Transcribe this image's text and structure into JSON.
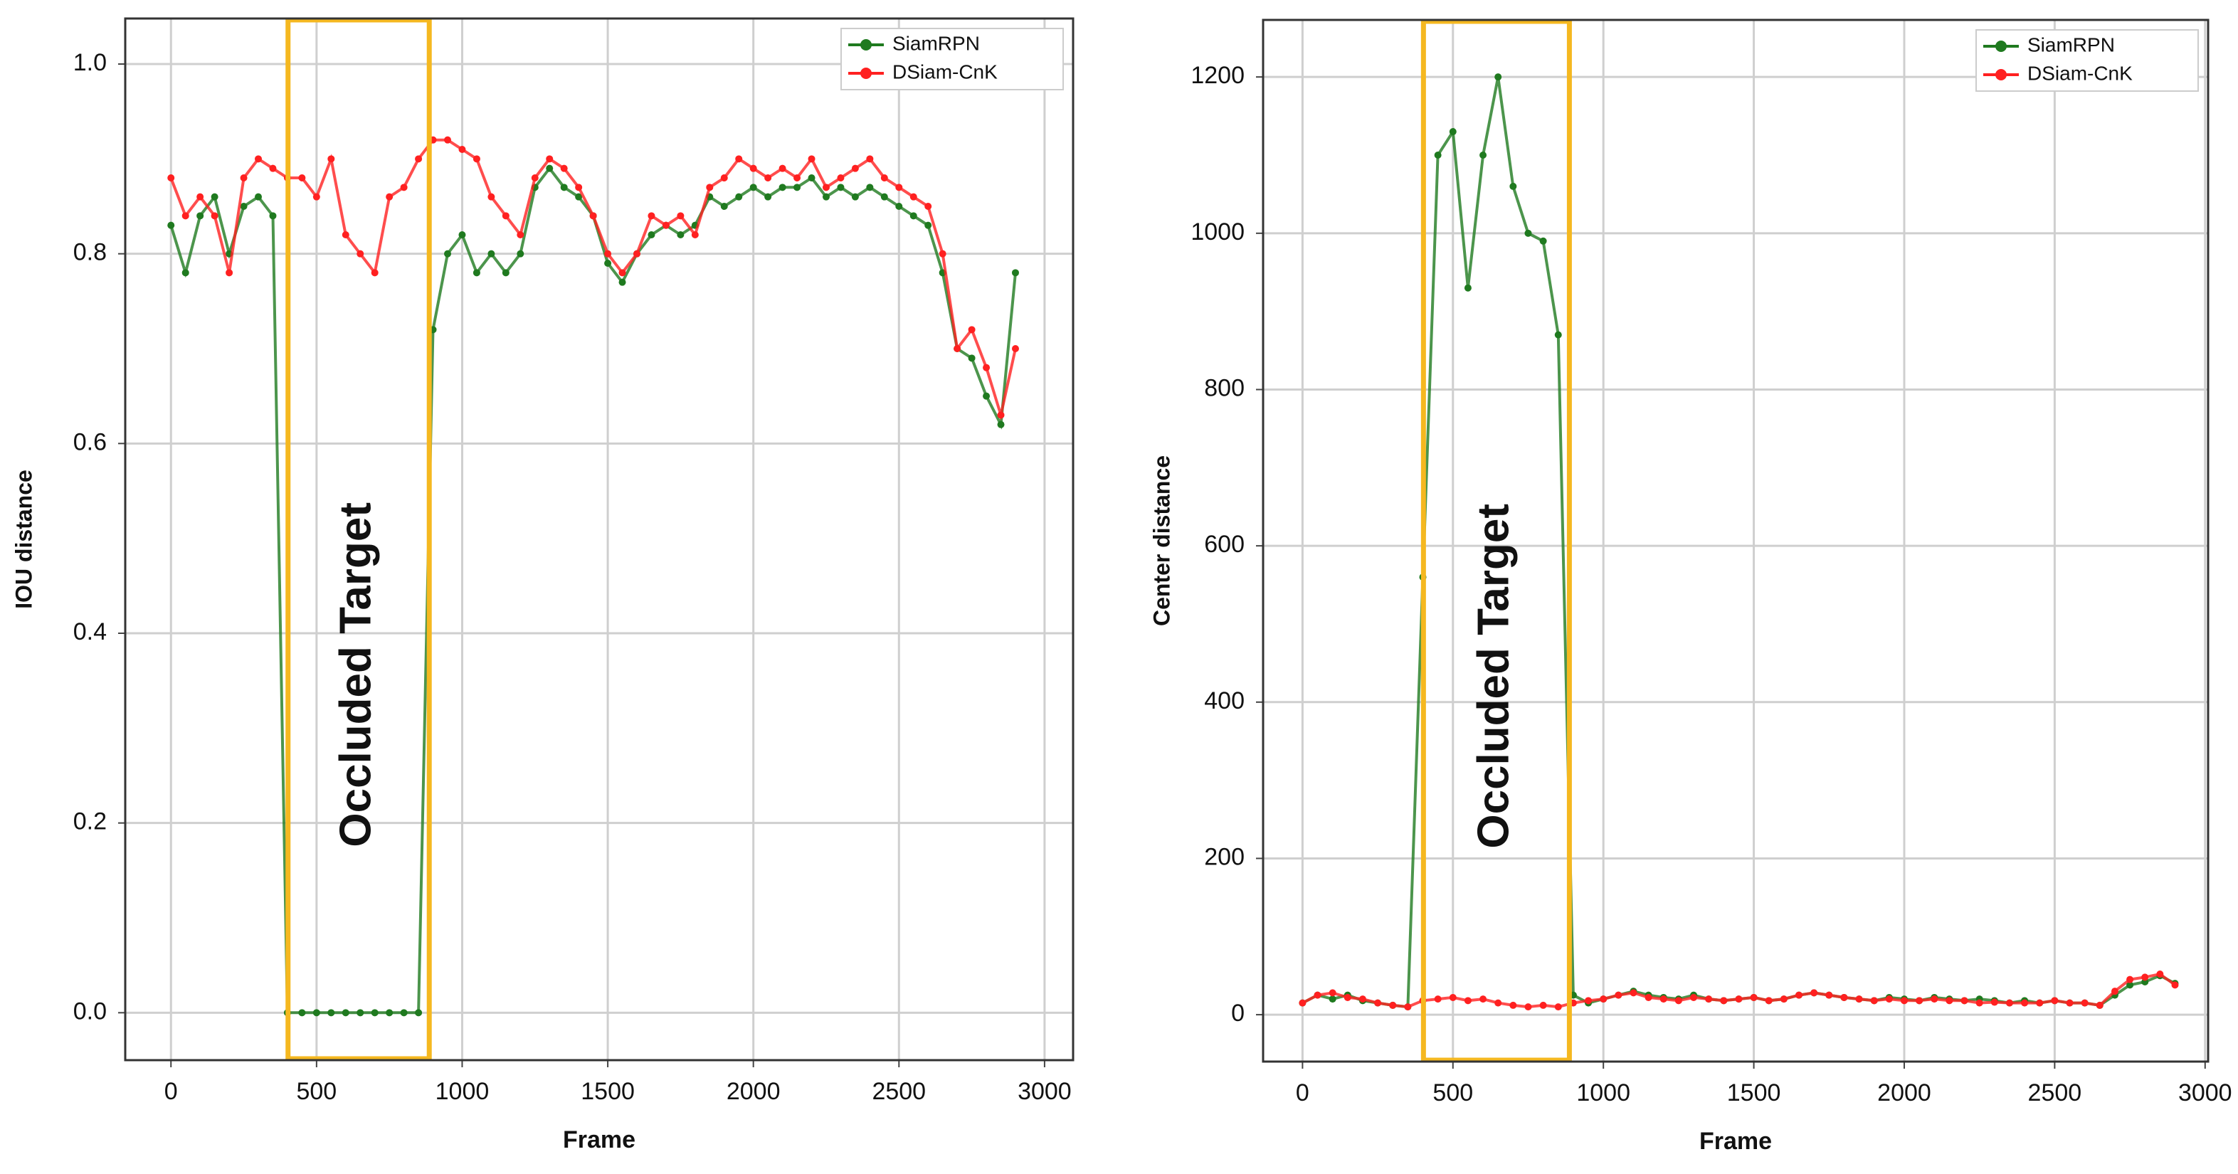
{
  "chart_data": [
    {
      "type": "line",
      "xlabel": "Frame",
      "ylabel": "IOU distance",
      "xlim": [
        -157,
        3098
      ],
      "ylim": [
        -0.05,
        1.048
      ],
      "xticks": [
        0,
        500,
        1000,
        1500,
        2000,
        2500,
        3000
      ],
      "yticks": [
        {
          "value": 0,
          "label": "0.0"
        },
        {
          "value": 0.2,
          "label": "0.2"
        },
        {
          "value": 0.4,
          "label": "0.4"
        },
        {
          "value": 0.6,
          "label": "0.6"
        },
        {
          "value": 0.8,
          "label": "0.8"
        },
        {
          "value": 1,
          "label": "1.0"
        }
      ],
      "grid": true,
      "legend": "upper right",
      "annotation": {
        "text": "Occluded Target",
        "x": [
          402,
          887
        ],
        "color": "#f5b820"
      },
      "x": [
        0,
        50,
        100,
        150,
        200,
        250,
        300,
        350,
        400,
        450,
        500,
        550,
        600,
        650,
        700,
        750,
        800,
        850,
        900,
        950,
        1000,
        1050,
        1100,
        1150,
        1200,
        1250,
        1300,
        1350,
        1400,
        1450,
        1500,
        1550,
        1600,
        1650,
        1700,
        1750,
        1800,
        1850,
        1900,
        1950,
        2000,
        2050,
        2100,
        2150,
        2200,
        2250,
        2300,
        2350,
        2400,
        2450,
        2500,
        2550,
        2600,
        2650,
        2700,
        2750,
        2800,
        2850,
        2900
      ],
      "series": [
        {
          "name": "SiamRPN",
          "color": "#1f7a1f",
          "values": [
            0.83,
            0.78,
            0.84,
            0.86,
            0.8,
            0.85,
            0.86,
            0.84,
            0,
            0,
            0,
            0,
            0,
            0,
            0,
            0,
            0,
            0,
            0.72,
            0.8,
            0.82,
            0.78,
            0.8,
            0.78,
            0.8,
            0.87,
            0.89,
            0.87,
            0.86,
            0.84,
            0.79,
            0.77,
            0.8,
            0.82,
            0.83,
            0.82,
            0.83,
            0.86,
            0.85,
            0.86,
            0.87,
            0.86,
            0.87,
            0.87,
            0.88,
            0.86,
            0.87,
            0.86,
            0.87,
            0.86,
            0.85,
            0.84,
            0.83,
            0.78,
            0.7,
            0.69,
            0.65,
            0.62,
            0.78
          ]
        },
        {
          "name": "DSiam-CnK",
          "color": "#ff2020",
          "values": [
            0.88,
            0.84,
            0.86,
            0.84,
            0.78,
            0.88,
            0.9,
            0.89,
            0.88,
            0.88,
            0.86,
            0.9,
            0.82,
            0.8,
            0.78,
            0.86,
            0.87,
            0.9,
            0.92,
            0.92,
            0.91,
            0.9,
            0.86,
            0.84,
            0.82,
            0.88,
            0.9,
            0.89,
            0.87,
            0.84,
            0.8,
            0.78,
            0.8,
            0.84,
            0.83,
            0.84,
            0.82,
            0.87,
            0.88,
            0.9,
            0.89,
            0.88,
            0.89,
            0.88,
            0.9,
            0.87,
            0.88,
            0.89,
            0.9,
            0.88,
            0.87,
            0.86,
            0.85,
            0.8,
            0.7,
            0.72,
            0.68,
            0.63,
            0.7
          ]
        }
      ]
    },
    {
      "type": "line",
      "xlabel": "Frame",
      "ylabel": "Center distance",
      "xlim": [
        -131,
        3010
      ],
      "ylim": [
        -60,
        1273
      ],
      "xticks": [
        0,
        500,
        1000,
        1500,
        2000,
        2500,
        3000
      ],
      "yticks": [
        0,
        200,
        400,
        600,
        800,
        1000,
        1200
      ],
      "grid": true,
      "legend": "upper right",
      "annotation": {
        "text": "Occluded Target",
        "x": [
          402,
          887
        ],
        "color": "#f5b820"
      },
      "x": [
        0,
        50,
        100,
        150,
        200,
        250,
        300,
        350,
        400,
        450,
        500,
        550,
        600,
        650,
        700,
        750,
        800,
        850,
        900,
        950,
        1000,
        1050,
        1100,
        1150,
        1200,
        1250,
        1300,
        1350,
        1400,
        1450,
        1500,
        1550,
        1600,
        1650,
        1700,
        1750,
        1800,
        1850,
        1900,
        1950,
        2000,
        2050,
        2100,
        2150,
        2200,
        2250,
        2300,
        2350,
        2400,
        2450,
        2500,
        2550,
        2600,
        2650,
        2700,
        2750,
        2800,
        2850,
        2900
      ],
      "series": [
        {
          "name": "SiamRPN",
          "color": "#1f7a1f",
          "values": [
            15,
            25,
            20,
            25,
            18,
            15,
            12,
            10,
            560,
            1100,
            1130,
            930,
            1100,
            1200,
            1060,
            1000,
            990,
            870,
            25,
            15,
            20,
            25,
            30,
            25,
            22,
            20,
            25,
            20,
            18,
            20,
            22,
            18,
            20,
            25,
            28,
            25,
            22,
            20,
            18,
            22,
            20,
            18,
            22,
            20,
            18,
            20,
            18,
            15,
            18,
            15,
            18,
            15,
            15,
            12,
            25,
            38,
            42,
            50,
            40
          ]
        },
        {
          "name": "DSiam-CnK",
          "color": "#ff2020",
          "values": [
            15,
            25,
            28,
            22,
            20,
            15,
            12,
            10,
            18,
            20,
            22,
            18,
            20,
            15,
            12,
            10,
            12,
            10,
            15,
            18,
            20,
            25,
            28,
            22,
            20,
            18,
            22,
            20,
            18,
            20,
            22,
            18,
            20,
            25,
            28,
            25,
            22,
            20,
            18,
            20,
            18,
            18,
            20,
            18,
            18,
            15,
            16,
            15,
            15,
            15,
            18,
            15,
            15,
            12,
            30,
            45,
            48,
            52,
            38
          ]
        }
      ]
    }
  ]
}
